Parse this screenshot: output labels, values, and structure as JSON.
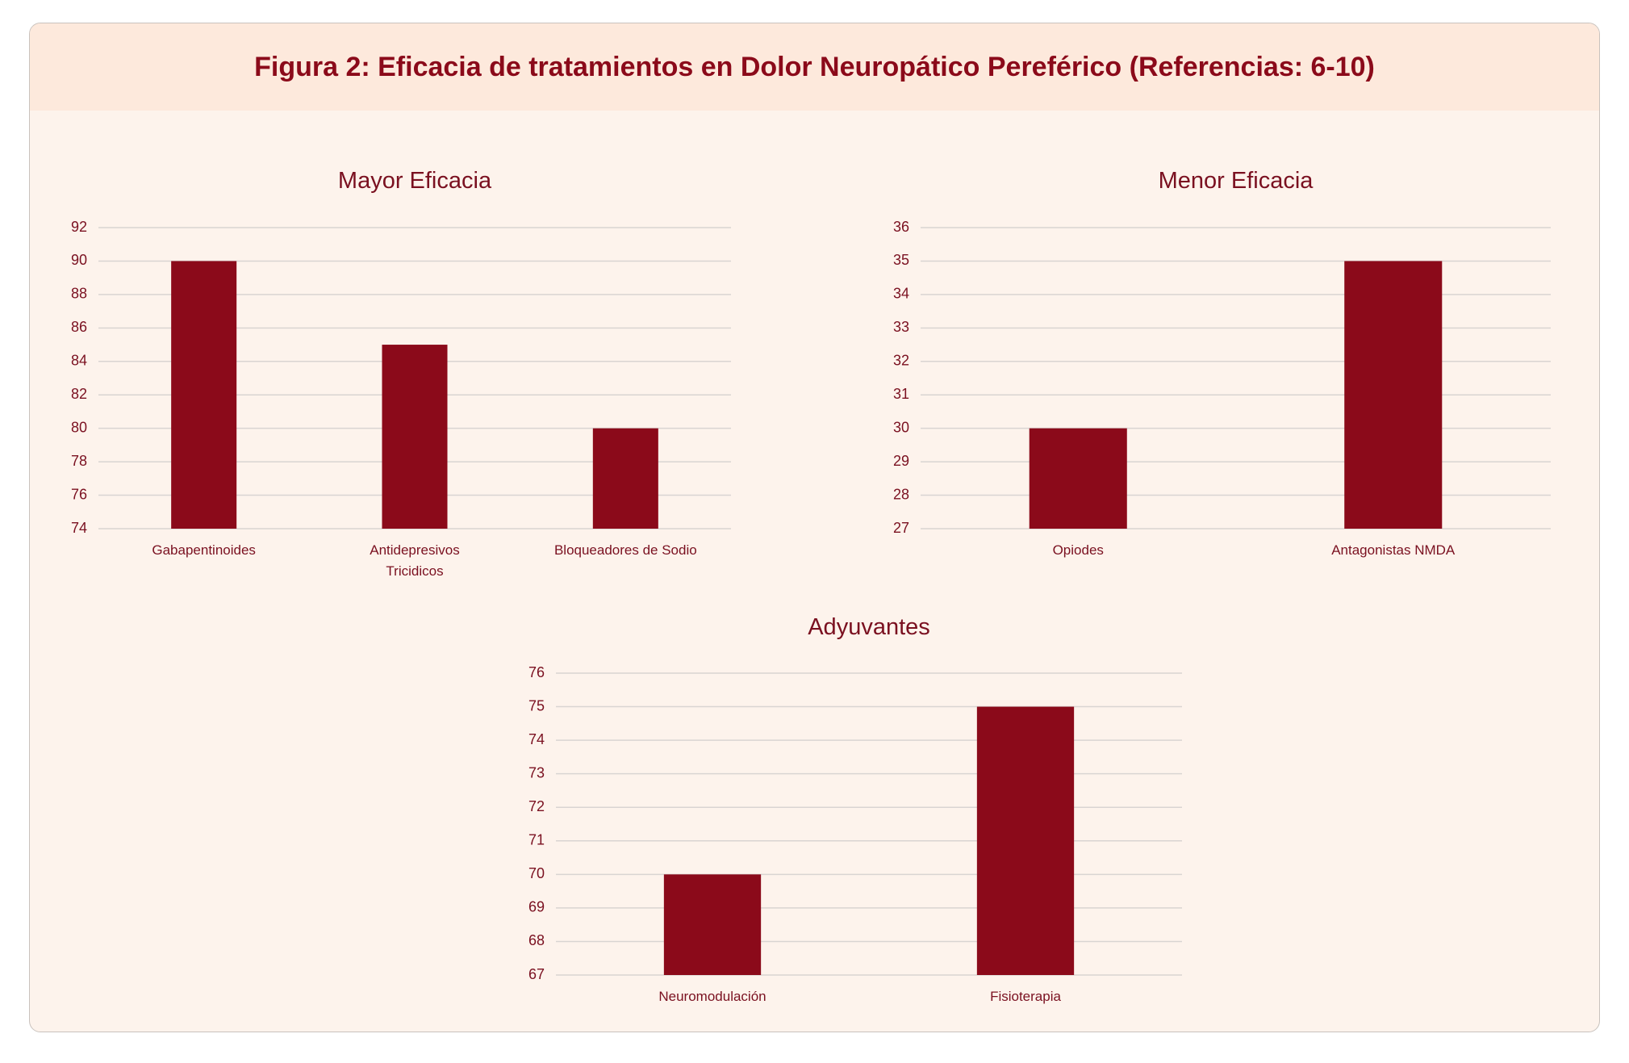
{
  "title": "Figura 2: Eficacia de tratamientos en Dolor Neuropático Pereférico (Referencias: 6-10)",
  "chart_data": [
    {
      "type": "bar",
      "title": "Mayor Eficacia",
      "categories": [
        "Gabapentinoides",
        "Antidepresivos Tricidicos",
        "Bloqueadores de Sodio"
      ],
      "values": [
        90,
        85,
        80
      ],
      "color": "#8b0a1a",
      "ylim": [
        74,
        92
      ],
      "yticks": [
        74,
        76,
        78,
        80,
        82,
        84,
        86,
        88,
        90,
        92
      ],
      "grid": true
    },
    {
      "type": "bar",
      "title": "Menor Eficacia",
      "categories": [
        "Opiodes",
        "Antagonistas NMDA"
      ],
      "values": [
        30,
        35
      ],
      "color": "#8b0a1a",
      "ylim": [
        27,
        36
      ],
      "yticks": [
        27,
        28,
        29,
        30,
        31,
        32,
        33,
        34,
        35,
        36
      ],
      "grid": true
    },
    {
      "type": "bar",
      "title": "Adyuvantes",
      "categories": [
        "Neuromodulación",
        "Fisioterapia"
      ],
      "values": [
        70,
        75
      ],
      "color": "#8b0a1a",
      "ylim": [
        67,
        76
      ],
      "yticks": [
        67,
        68,
        69,
        70,
        71,
        72,
        73,
        74,
        75,
        76
      ],
      "grid": true
    }
  ]
}
